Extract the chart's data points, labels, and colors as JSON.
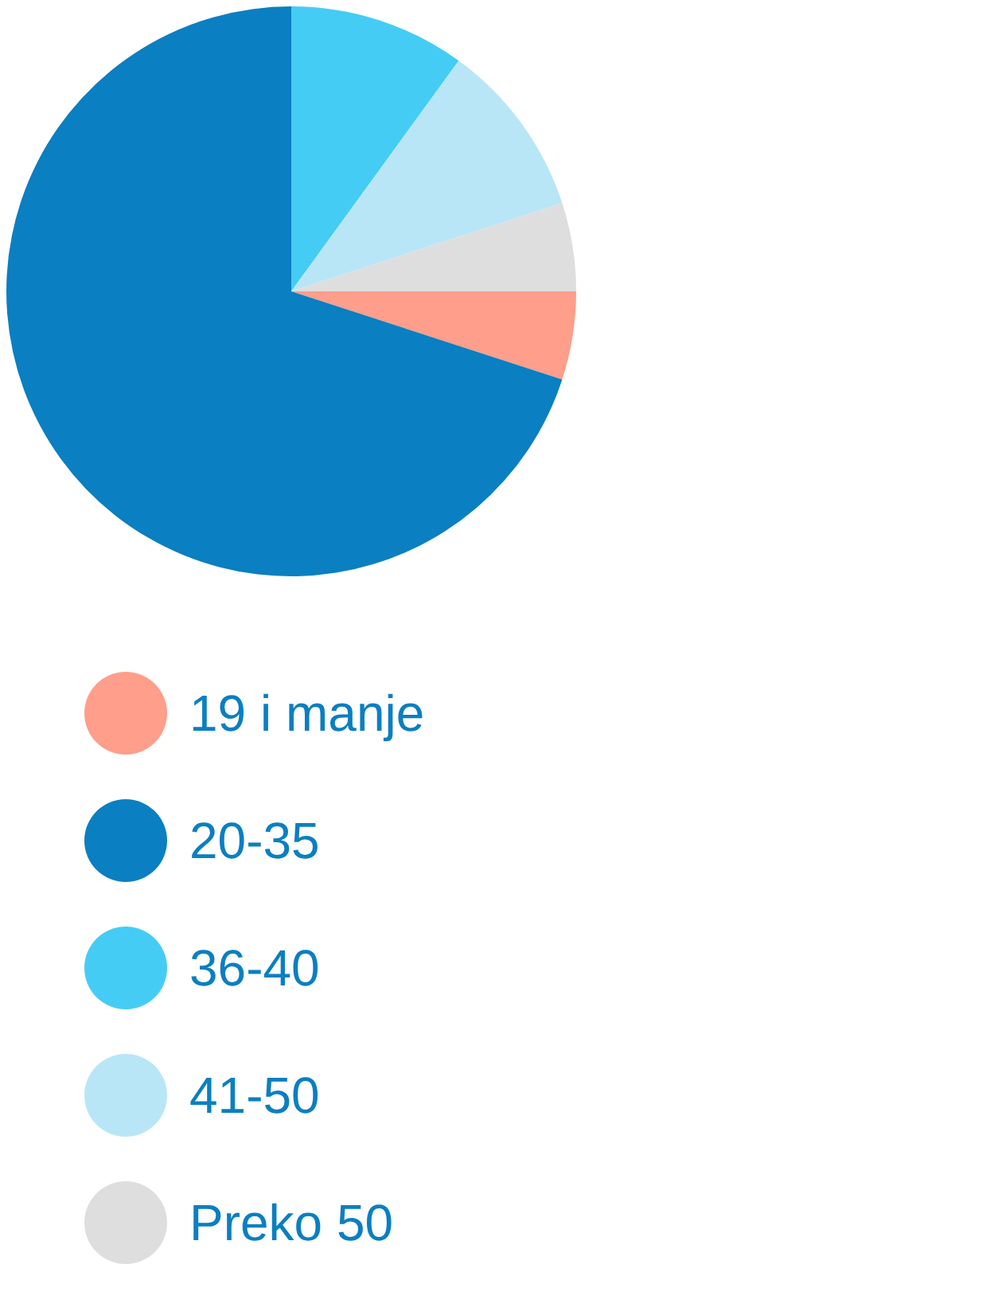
{
  "chart_data": {
    "type": "pie",
    "categories": [
      "19 i manje",
      "20-35",
      "36-40",
      "41-50",
      "Preko 50"
    ],
    "values": [
      5,
      70,
      10,
      10,
      5
    ],
    "colors": [
      "#ff9e8a",
      "#0a7fc1",
      "#45ccf5",
      "#b9e6f7",
      "#dedede"
    ],
    "legend": "bottom"
  }
}
